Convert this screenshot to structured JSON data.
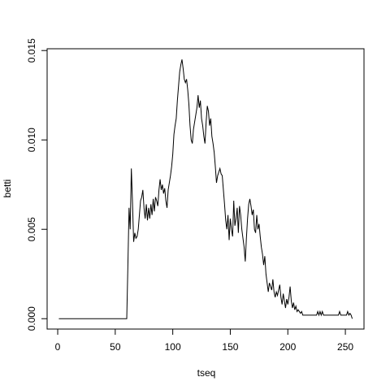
{
  "chart_data": {
    "type": "line",
    "xlabel": "tseq",
    "ylabel": "betti",
    "x": [
      1,
      2,
      3,
      4,
      5,
      6,
      7,
      8,
      9,
      10,
      11,
      12,
      13,
      14,
      15,
      16,
      17,
      18,
      19,
      20,
      21,
      22,
      23,
      24,
      25,
      26,
      27,
      28,
      29,
      30,
      31,
      32,
      33,
      34,
      35,
      36,
      37,
      38,
      39,
      40,
      41,
      42,
      43,
      44,
      45,
      46,
      47,
      48,
      49,
      50,
      51,
      52,
      53,
      54,
      55,
      56,
      57,
      58,
      59,
      60,
      61,
      62,
      63,
      64,
      65,
      66,
      67,
      68,
      69,
      70,
      71,
      72,
      73,
      74,
      75,
      76,
      77,
      78,
      79,
      80,
      81,
      82,
      83,
      84,
      85,
      86,
      87,
      88,
      89,
      90,
      91,
      92,
      93,
      94,
      95,
      96,
      97,
      98,
      99,
      100,
      101,
      102,
      103,
      104,
      105,
      106,
      107,
      108,
      109,
      110,
      111,
      112,
      113,
      114,
      115,
      116,
      117,
      118,
      119,
      120,
      121,
      122,
      123,
      124,
      125,
      126,
      127,
      128,
      129,
      130,
      131,
      132,
      133,
      134,
      135,
      136,
      137,
      138,
      139,
      140,
      141,
      142,
      143,
      144,
      145,
      146,
      147,
      148,
      149,
      150,
      151,
      152,
      153,
      154,
      155,
      156,
      157,
      158,
      159,
      160,
      161,
      162,
      163,
      164,
      165,
      166,
      167,
      168,
      169,
      170,
      171,
      172,
      173,
      174,
      175,
      176,
      177,
      178,
      179,
      180,
      181,
      182,
      183,
      184,
      185,
      186,
      187,
      188,
      189,
      190,
      191,
      192,
      193,
      194,
      195,
      196,
      197,
      198,
      199,
      200,
      201,
      202,
      203,
      204,
      205,
      206,
      207,
      208,
      209,
      210,
      211,
      212,
      213,
      214,
      215,
      216,
      217,
      218,
      219,
      220,
      221,
      222,
      223,
      224,
      225,
      226,
      227,
      228,
      229,
      230,
      231,
      232,
      233,
      234,
      235,
      236,
      237,
      238,
      239,
      240,
      241,
      242,
      243,
      244,
      245,
      246,
      247,
      248,
      249,
      250,
      251,
      252,
      253,
      254,
      255,
      256
    ],
    "values": [
      0,
      0,
      0,
      0,
      0,
      0,
      0,
      0,
      0,
      0,
      0,
      0,
      0,
      0,
      0,
      0,
      0,
      0,
      0,
      0,
      0,
      0,
      0,
      0,
      0,
      0,
      0,
      0,
      0,
      0,
      0,
      0,
      0,
      0,
      0,
      0,
      0,
      0,
      0,
      0,
      0,
      0,
      0,
      0,
      0,
      0,
      0,
      0,
      0,
      0,
      0,
      0,
      0,
      0,
      0,
      0,
      0,
      0,
      0,
      0,
      0.003,
      0.0062,
      0.005,
      0.0084,
      0.0065,
      0.0043,
      0.0048,
      0.0045,
      0.0046,
      0.005,
      0.0058,
      0.0066,
      0.0068,
      0.0072,
      0.0062,
      0.0056,
      0.0064,
      0.0055,
      0.0062,
      0.0056,
      0.0064,
      0.0058,
      0.0067,
      0.006,
      0.0068,
      0.0066,
      0.0063,
      0.0072,
      0.0078,
      0.0072,
      0.0075,
      0.007,
      0.0073,
      0.0066,
      0.0062,
      0.0072,
      0.0076,
      0.008,
      0.0085,
      0.0092,
      0.0103,
      0.0108,
      0.0112,
      0.0122,
      0.013,
      0.0138,
      0.0142,
      0.0145,
      0.014,
      0.0134,
      0.0132,
      0.0134,
      0.0128,
      0.012,
      0.0108,
      0.01,
      0.0098,
      0.0106,
      0.011,
      0.0114,
      0.0118,
      0.0125,
      0.0118,
      0.0122,
      0.0112,
      0.0108,
      0.0102,
      0.0098,
      0.011,
      0.0119,
      0.0116,
      0.0108,
      0.0112,
      0.0102,
      0.0098,
      0.0093,
      0.0085,
      0.0076,
      0.008,
      0.0082,
      0.0084,
      0.0081,
      0.008,
      0.0072,
      0.0064,
      0.0055,
      0.005,
      0.0058,
      0.0044,
      0.0056,
      0.005,
      0.0046,
      0.0066,
      0.0052,
      0.0056,
      0.0062,
      0.0048,
      0.0063,
      0.0058,
      0.005,
      0.0045,
      0.004,
      0.0032,
      0.0045,
      0.0056,
      0.0064,
      0.0067,
      0.0063,
      0.0058,
      0.0061,
      0.005,
      0.0048,
      0.0058,
      0.005,
      0.0053,
      0.0046,
      0.004,
      0.0036,
      0.003,
      0.0035,
      0.0025,
      0.002,
      0.0015,
      0.002,
      0.0018,
      0.0016,
      0.0022,
      0.0015,
      0.0012,
      0.0015,
      0.0013,
      0.0016,
      0.0019,
      0.0012,
      0.0008,
      0.0014,
      0.001,
      0.0006,
      0.0011,
      0.0008,
      0.0012,
      0.0018,
      0.001,
      0.0006,
      0.0009,
      0.0005,
      0.0007,
      0.0004,
      0.0005,
      0.0004,
      0.0003,
      0.0004,
      0.0002,
      0.0002,
      0.0002,
      0.0002,
      0.0002,
      0.0002,
      0.0002,
      0.0002,
      0.0002,
      0.0002,
      0.0002,
      0.0002,
      0.0002,
      0.0004,
      0.0002,
      0.0004,
      0.0002,
      0.0004,
      0.0002,
      0.0002,
      0.0002,
      0.0002,
      0.0002,
      0.0002,
      0.0002,
      0.0002,
      0.0002,
      0.0002,
      0.0002,
      0.0002,
      0.0002,
      0.0002,
      0.0004,
      0.0002,
      0.0002,
      0.0002,
      0.0002,
      0.0002,
      0.0002,
      0.0004,
      0.0002,
      0.0003,
      0.0002,
      0
    ],
    "color": "#000000",
    "xlim": [
      -9.2,
      266.2
    ],
    "ylim": [
      -0.00058,
      0.0151
    ],
    "xticks": [
      0,
      50,
      100,
      150,
      200,
      250
    ],
    "yticks": [
      {
        "value": 0,
        "label": "0.000"
      },
      {
        "value": 0.005,
        "label": "0.005"
      },
      {
        "value": 0.01,
        "label": "0.010"
      },
      {
        "value": 0.015,
        "label": "0.015"
      }
    ],
    "grid": false
  }
}
